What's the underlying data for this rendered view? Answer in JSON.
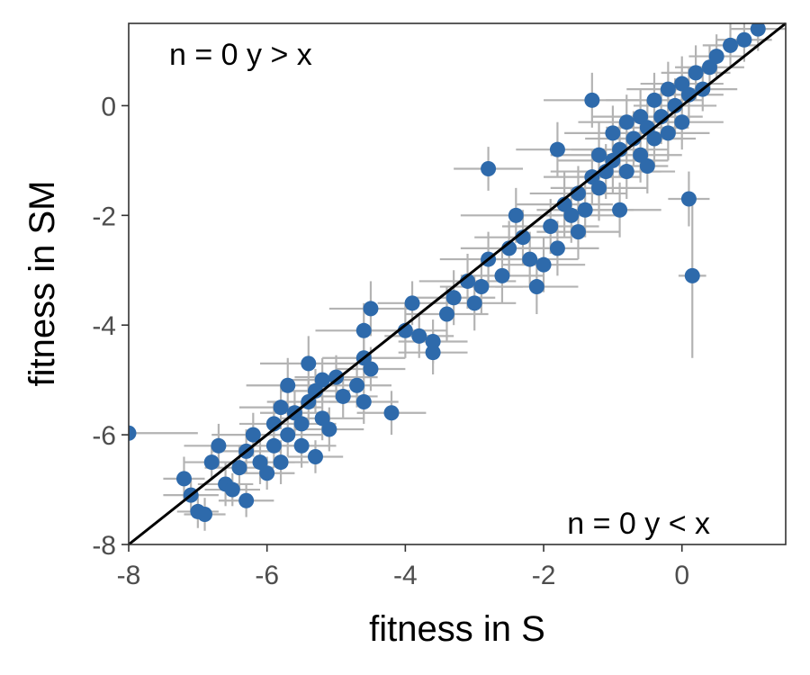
{
  "chart_data": {
    "type": "scatter",
    "xlabel": "fitness in S",
    "ylabel": "fitness in SM",
    "xlim": [
      -8,
      1.5
    ],
    "ylim": [
      -8,
      1.5
    ],
    "x_ticks": [
      -8,
      -6,
      -4,
      -2,
      0
    ],
    "y_ticks": [
      -8,
      -6,
      -4,
      -2,
      0
    ],
    "x_tick_labels": [
      "-8",
      "-6",
      "-4",
      "-2",
      "0"
    ],
    "y_tick_labels": [
      "-8",
      "-6",
      "-4",
      "-2",
      "0"
    ],
    "annotations": {
      "top_left": "n = 0 y > x",
      "bottom_right": "n = 0 y < x"
    },
    "reference_line": "y = x",
    "grid": false,
    "colors": {
      "points": "#2e6aab",
      "error_bars": "#b3b3b3",
      "line": "#000000",
      "frame": "#333333"
    },
    "points": [
      [
        -8.0,
        -5.97,
        1.0,
        0.0
      ],
      [
        -7.0,
        -7.4,
        0.3,
        0.3
      ],
      [
        -7.1,
        -7.1,
        0.4,
        0.3
      ],
      [
        -7.2,
        -6.8,
        0.3,
        0.4
      ],
      [
        -6.9,
        -7.45,
        0.3,
        0.3
      ],
      [
        -6.8,
        -6.5,
        0.4,
        0.3
      ],
      [
        -6.7,
        -6.2,
        0.5,
        0.4
      ],
      [
        -6.6,
        -6.9,
        0.4,
        0.4
      ],
      [
        -6.5,
        -7.0,
        0.4,
        0.3
      ],
      [
        -6.4,
        -6.6,
        0.5,
        0.4
      ],
      [
        -6.3,
        -7.2,
        0.4,
        0.3
      ],
      [
        -6.3,
        -6.3,
        0.5,
        0.4
      ],
      [
        -6.2,
        -6.0,
        0.6,
        0.4
      ],
      [
        -6.1,
        -6.5,
        0.5,
        0.4
      ],
      [
        -6.0,
        -6.7,
        0.4,
        0.3
      ],
      [
        -5.9,
        -6.2,
        0.5,
        0.4
      ],
      [
        -5.9,
        -5.8,
        0.5,
        0.4
      ],
      [
        -5.8,
        -5.5,
        0.6,
        0.4
      ],
      [
        -5.8,
        -6.5,
        0.4,
        0.4
      ],
      [
        -5.7,
        -6.0,
        0.5,
        0.4
      ],
      [
        -5.7,
        -5.1,
        0.6,
        0.5
      ],
      [
        -5.6,
        -5.6,
        0.5,
        0.4
      ],
      [
        -5.5,
        -6.2,
        0.5,
        0.4
      ],
      [
        -5.5,
        -5.8,
        0.5,
        0.4
      ],
      [
        -5.4,
        -4.7,
        0.7,
        0.5
      ],
      [
        -5.4,
        -5.4,
        0.6,
        0.4
      ],
      [
        -5.3,
        -6.4,
        0.4,
        0.3
      ],
      [
        -5.3,
        -5.2,
        0.5,
        0.4
      ],
      [
        -5.2,
        -5.7,
        0.6,
        0.4
      ],
      [
        -5.2,
        -5.0,
        0.5,
        0.4
      ],
      [
        -5.1,
        -5.9,
        0.5,
        0.4
      ],
      [
        -5.0,
        -4.95,
        0.6,
        0.4
      ],
      [
        -4.9,
        -5.3,
        0.5,
        0.4
      ],
      [
        -4.7,
        -5.1,
        0.5,
        0.4
      ],
      [
        -4.6,
        -5.4,
        0.5,
        0.4
      ],
      [
        -4.6,
        -4.6,
        0.6,
        0.4
      ],
      [
        -4.5,
        -4.8,
        0.5,
        0.4
      ],
      [
        -4.6,
        -4.1,
        0.7,
        0.5
      ],
      [
        -4.5,
        -3.7,
        0.6,
        0.5
      ],
      [
        -4.2,
        -5.6,
        0.5,
        0.4
      ],
      [
        -4.0,
        -4.1,
        0.6,
        0.5
      ],
      [
        -3.9,
        -3.6,
        0.5,
        0.4
      ],
      [
        -3.8,
        -4.2,
        0.5,
        0.4
      ],
      [
        -3.6,
        -4.3,
        0.5,
        0.4
      ],
      [
        -3.6,
        -4.5,
        0.5,
        0.4
      ],
      [
        -3.4,
        -3.8,
        0.6,
        0.5
      ],
      [
        -3.3,
        -3.5,
        0.6,
        0.5
      ],
      [
        -3.1,
        -3.2,
        0.7,
        0.5
      ],
      [
        -3.0,
        -3.6,
        0.6,
        0.5
      ],
      [
        -2.9,
        -3.3,
        0.6,
        0.5
      ],
      [
        -2.8,
        -2.8,
        0.7,
        0.5
      ],
      [
        -2.6,
        -3.1,
        0.6,
        0.5
      ],
      [
        -2.5,
        -2.6,
        0.7,
        0.5
      ],
      [
        -2.4,
        -2.0,
        0.8,
        0.5
      ],
      [
        -2.3,
        -2.4,
        0.7,
        0.5
      ],
      [
        -2.2,
        -2.8,
        0.7,
        0.5
      ],
      [
        -2.1,
        -3.3,
        0.6,
        0.5
      ],
      [
        -2.0,
        -2.9,
        0.6,
        0.5
      ],
      [
        -1.9,
        -2.2,
        0.7,
        0.5
      ],
      [
        -1.8,
        -2.6,
        0.6,
        0.5
      ],
      [
        -1.7,
        -1.8,
        0.7,
        0.6
      ],
      [
        -1.6,
        -2.0,
        0.7,
        0.5
      ],
      [
        -1.5,
        -1.6,
        0.7,
        0.5
      ],
      [
        -1.4,
        -1.9,
        0.7,
        0.5
      ],
      [
        -1.3,
        -1.3,
        0.7,
        0.5
      ],
      [
        -1.2,
        -1.5,
        0.7,
        0.6
      ],
      [
        -1.2,
        -0.9,
        0.7,
        0.6
      ],
      [
        -1.1,
        -1.2,
        0.8,
        0.5
      ],
      [
        -1.0,
        -1.0,
        0.8,
        0.6
      ],
      [
        -1.0,
        -0.5,
        0.7,
        0.5
      ],
      [
        -0.9,
        -0.8,
        0.7,
        0.5
      ],
      [
        -0.8,
        -1.2,
        0.7,
        0.5
      ],
      [
        -0.8,
        -0.3,
        0.7,
        0.5
      ],
      [
        -0.7,
        -0.6,
        0.7,
        0.5
      ],
      [
        -0.6,
        -0.2,
        0.7,
        0.5
      ],
      [
        -0.6,
        -0.9,
        0.6,
        0.5
      ],
      [
        -0.5,
        -0.4,
        0.6,
        0.5
      ],
      [
        -0.4,
        0.1,
        0.7,
        0.5
      ],
      [
        -0.4,
        -0.6,
        0.6,
        0.5
      ],
      [
        -0.3,
        -0.2,
        0.6,
        0.5
      ],
      [
        -0.2,
        0.3,
        0.6,
        0.5
      ],
      [
        -0.2,
        -0.5,
        0.6,
        0.5
      ],
      [
        -0.1,
        0.0,
        0.6,
        0.5
      ],
      [
        0.0,
        0.4,
        0.6,
        0.5
      ],
      [
        0.0,
        -0.3,
        0.6,
        0.5
      ],
      [
        0.1,
        0.2,
        0.5,
        0.5
      ],
      [
        0.2,
        0.6,
        0.5,
        0.5
      ],
      [
        0.3,
        0.3,
        0.5,
        0.4
      ],
      [
        0.4,
        0.7,
        0.5,
        0.4
      ],
      [
        0.5,
        0.9,
        0.4,
        0.4
      ],
      [
        0.7,
        1.1,
        0.4,
        0.4
      ],
      [
        0.9,
        1.2,
        0.4,
        0.4
      ],
      [
        1.1,
        1.4,
        0.4,
        0.4
      ],
      [
        0.1,
        -1.7,
        0.3,
        0.5
      ],
      [
        0.15,
        -3.1,
        0.2,
        1.5
      ],
      [
        -0.5,
        -1.1,
        0.3,
        0.5
      ],
      [
        -2.8,
        -1.15,
        0.5,
        0.4
      ],
      [
        -1.3,
        0.1,
        0.7,
        0.5
      ],
      [
        -1.8,
        -0.8,
        0.6,
        0.5
      ],
      [
        -0.9,
        -1.9,
        0.6,
        0.5
      ],
      [
        -1.5,
        -2.3,
        0.6,
        0.5
      ]
    ]
  }
}
